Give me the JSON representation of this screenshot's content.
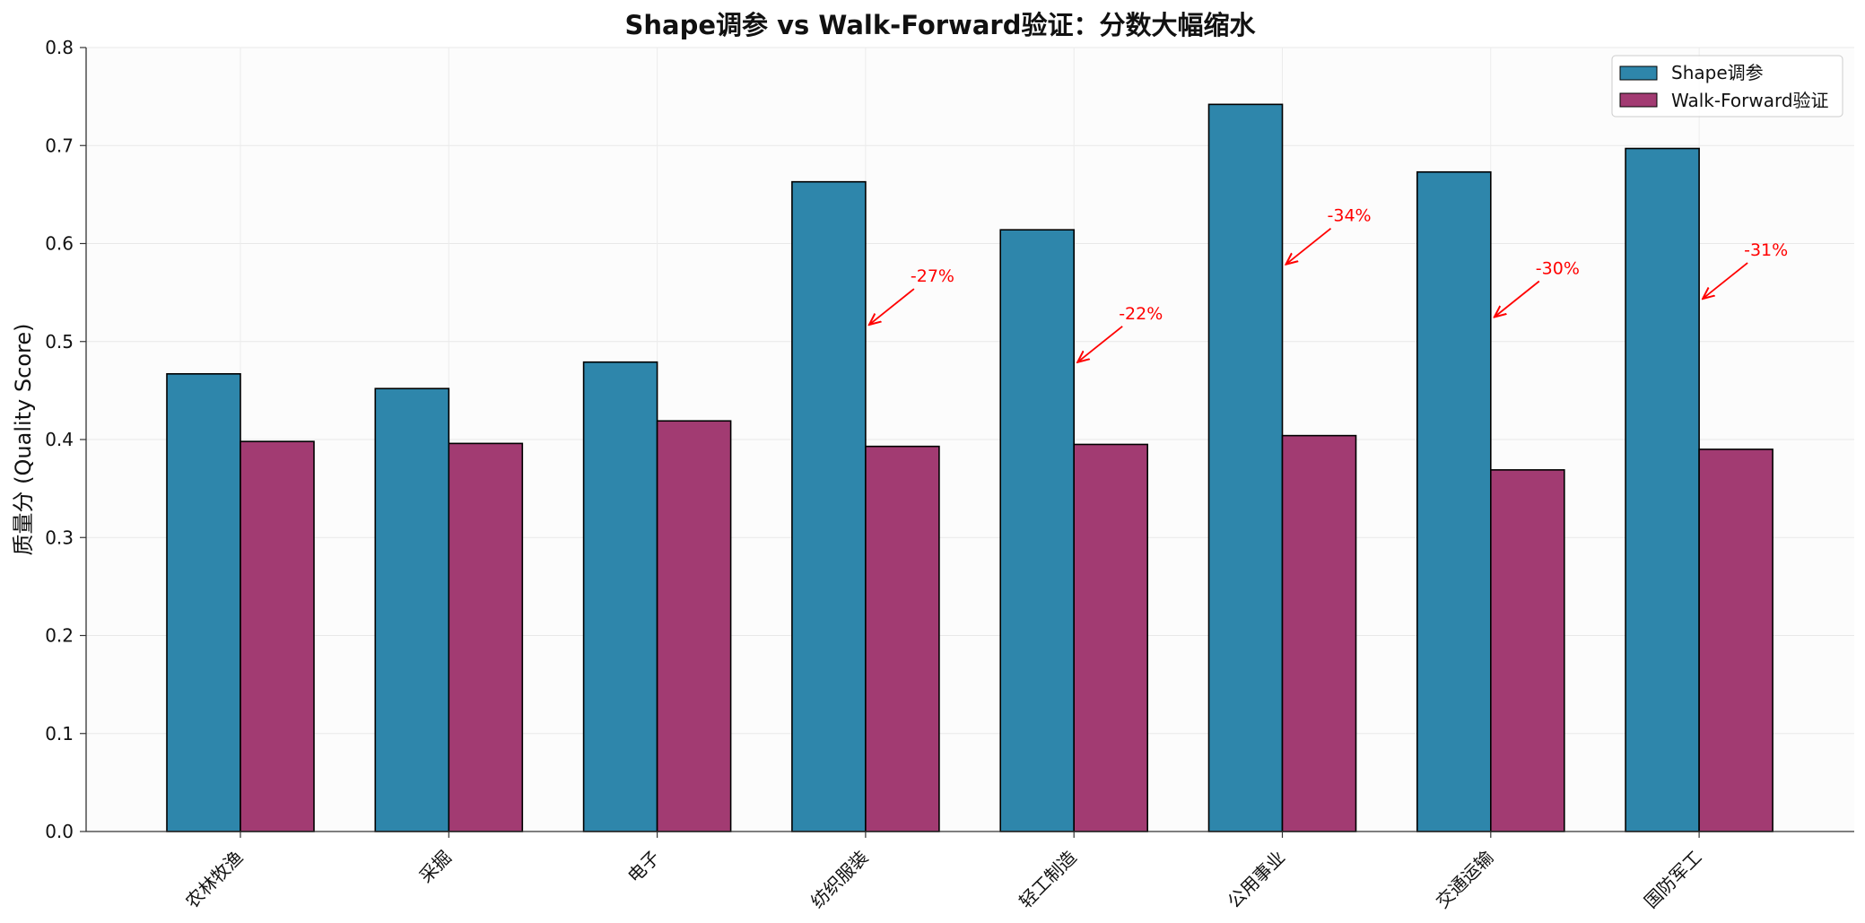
{
  "chart_data": {
    "type": "bar",
    "title": "Shape调参 vs Walk-Forward验证：分数大幅缩水",
    "ylabel": "质量分 (Quality Score)",
    "xlabel": "",
    "ylim": [
      0,
      0.8
    ],
    "yticks": [
      "0.0",
      "0.1",
      "0.2",
      "0.3",
      "0.4",
      "0.5",
      "0.6",
      "0.7",
      "0.8"
    ],
    "grid": true,
    "legend_position": "top-right",
    "categories": [
      "农林牧渔",
      "采掘",
      "电子",
      "纺织服装",
      "轻工制造",
      "公用事业",
      "交通运输",
      "国防军工"
    ],
    "series": [
      {
        "name": "Shape调参",
        "color": "#2e86ab",
        "values": [
          0.467,
          0.452,
          0.479,
          0.663,
          0.614,
          0.742,
          0.673,
          0.697
        ]
      },
      {
        "name": "Walk-Forward验证",
        "color": "#a23b72",
        "values": [
          0.398,
          0.396,
          0.419,
          0.393,
          0.395,
          0.404,
          0.369,
          0.39
        ]
      }
    ],
    "annotations": [
      {
        "category_index": 3,
        "text": "-27%"
      },
      {
        "category_index": 4,
        "text": "-22%"
      },
      {
        "category_index": 5,
        "text": "-34%"
      },
      {
        "category_index": 6,
        "text": "-30%"
      },
      {
        "category_index": 7,
        "text": "-31%"
      }
    ]
  }
}
